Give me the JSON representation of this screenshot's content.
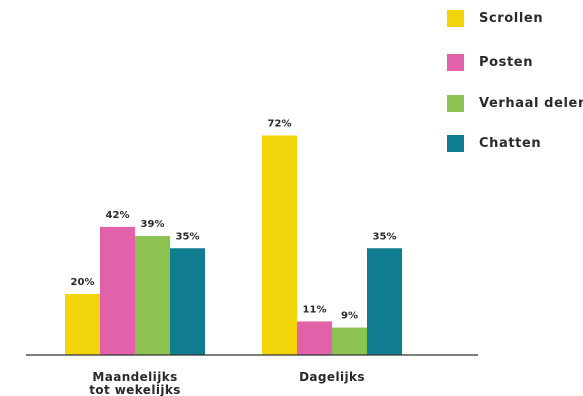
{
  "chart_data": {
    "type": "bar",
    "categories": [
      [
        "Maandelijks",
        "tot wekelijks"
      ],
      [
        "Dagelijks"
      ]
    ],
    "series": [
      {
        "name": "Scrollen",
        "color": "#f2d40a",
        "values": [
          20,
          72
        ],
        "labels": [
          "20%",
          "72%"
        ]
      },
      {
        "name": "Posten",
        "color": "#e162a8",
        "values": [
          42,
          11
        ],
        "labels": [
          "42%",
          "11%"
        ]
      },
      {
        "name": "Verhaal delen",
        "color": "#8dc253",
        "values": [
          39,
          9
        ],
        "labels": [
          "39%",
          "9%"
        ]
      },
      {
        "name": "Chatten",
        "color": "#0f7d8f",
        "values": [
          35,
          35
        ],
        "labels": [
          "35%",
          "35%"
        ]
      }
    ],
    "ylim": [
      0,
      80
    ],
    "unit": "%",
    "legend": "top-right",
    "grid": false
  }
}
